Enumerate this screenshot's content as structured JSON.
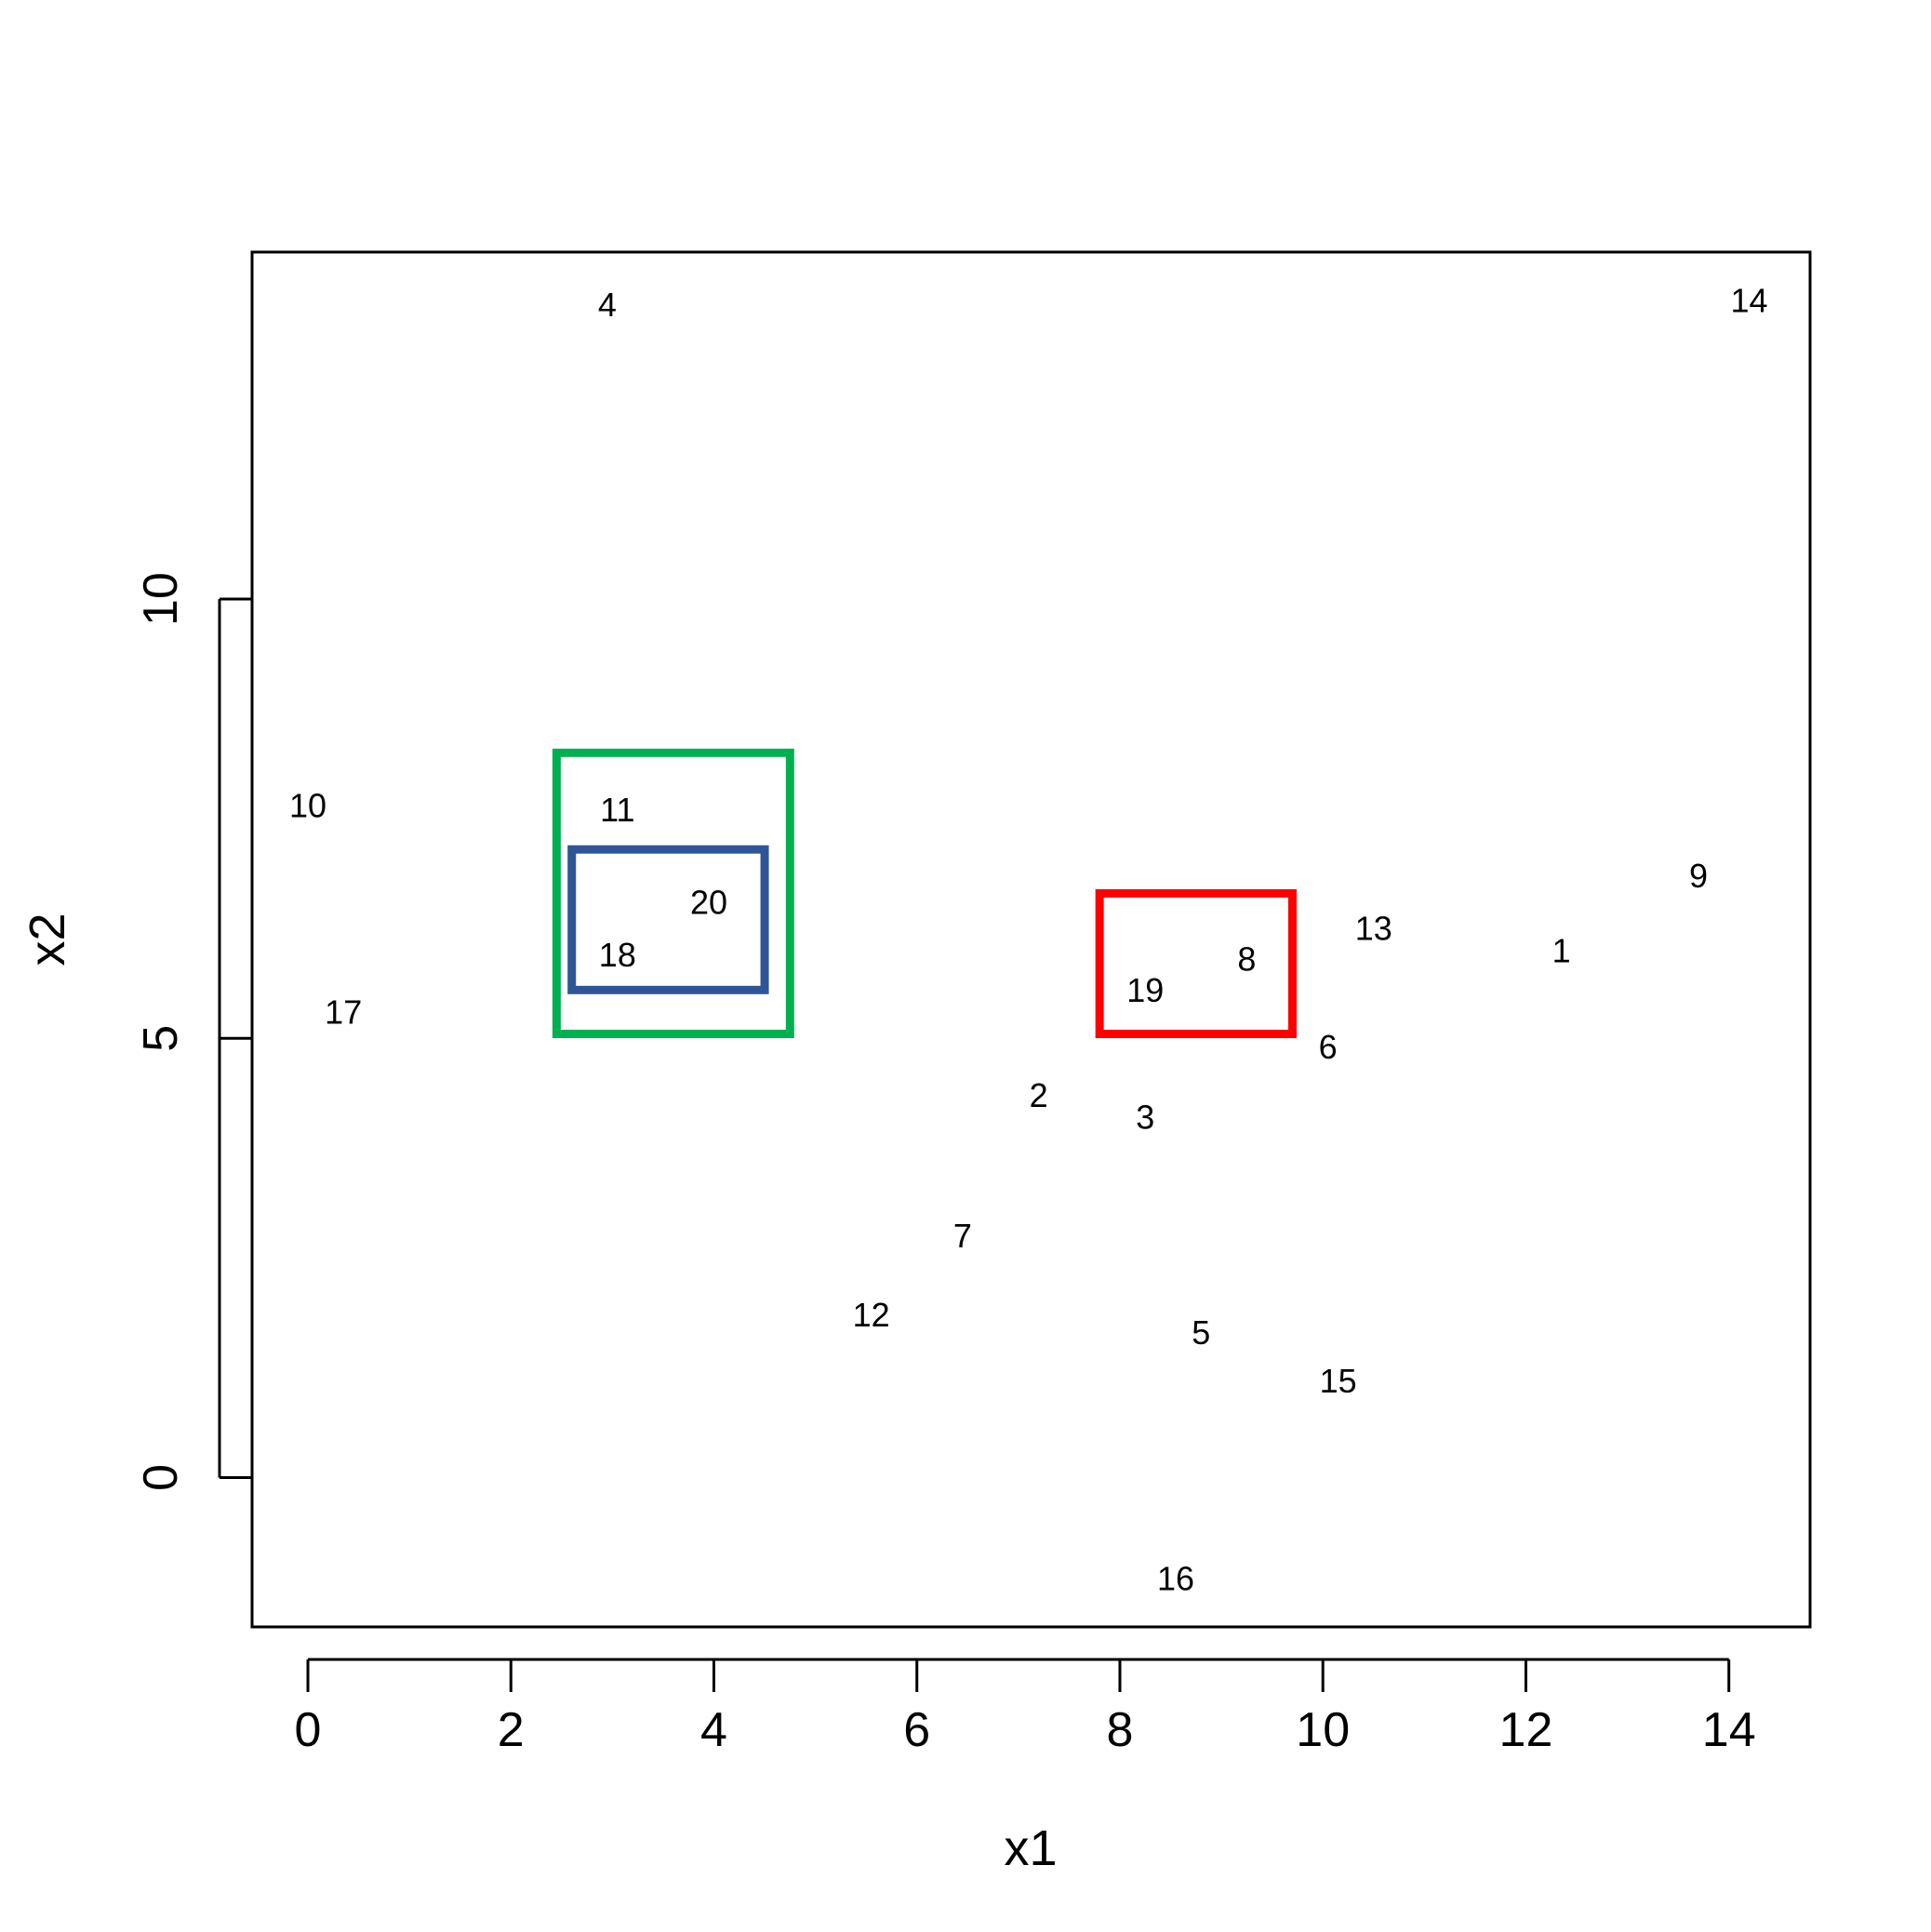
{
  "chart_data": {
    "type": "scatter",
    "title": "",
    "xlabel": "x1",
    "ylabel": "x2",
    "xlim": [
      -0.55,
      14.8
    ],
    "ylim": [
      -1.7,
      13.95
    ],
    "x_ticks": [
      0,
      2,
      4,
      6,
      8,
      10,
      12,
      14
    ],
    "y_ticks": [
      0,
      5,
      10
    ],
    "x_tick_labels": [
      "0",
      "2",
      "4",
      "6",
      "8",
      "10",
      "12",
      "14"
    ],
    "y_tick_labels": [
      "0",
      "5",
      "10"
    ],
    "grid": false,
    "legend": "none",
    "points": [
      {
        "label": "1",
        "x": 12.35,
        "y": 6.0
      },
      {
        "label": "2",
        "x": 7.2,
        "y": 4.35
      },
      {
        "label": "3",
        "x": 8.25,
        "y": 4.1
      },
      {
        "label": "4",
        "x": 2.95,
        "y": 13.35
      },
      {
        "label": "5",
        "x": 8.8,
        "y": 1.65
      },
      {
        "label": "6",
        "x": 10.05,
        "y": 4.9
      },
      {
        "label": "7",
        "x": 6.45,
        "y": 2.75
      },
      {
        "label": "8",
        "x": 9.25,
        "y": 5.9
      },
      {
        "label": "9",
        "x": 13.7,
        "y": 6.85
      },
      {
        "label": "10",
        "x": 0.0,
        "y": 7.65
      },
      {
        "label": "11",
        "x": 3.05,
        "y": 7.6
      },
      {
        "label": "12",
        "x": 5.55,
        "y": 1.85
      },
      {
        "label": "13",
        "x": 10.5,
        "y": 6.25
      },
      {
        "label": "14",
        "x": 14.2,
        "y": 13.4
      },
      {
        "label": "15",
        "x": 10.15,
        "y": 1.1
      },
      {
        "label": "16",
        "x": 8.55,
        "y": -1.15
      },
      {
        "label": "17",
        "x": 0.35,
        "y": 5.3
      },
      {
        "label": "18",
        "x": 3.05,
        "y": 5.95
      },
      {
        "label": "19",
        "x": 8.25,
        "y": 5.55
      },
      {
        "label": "20",
        "x": 3.95,
        "y": 6.55
      }
    ],
    "highlight_boxes": [
      {
        "name": "green-box",
        "color": "#00b050",
        "x_range": [
          2.45,
          4.75
        ],
        "y_range": [
          5.05,
          8.25
        ]
      },
      {
        "name": "blue-box",
        "color": "#2f5597",
        "x_range": [
          2.6,
          4.5
        ],
        "y_range": [
          5.55,
          7.15
        ]
      },
      {
        "name": "red-box",
        "color": "#ff0000",
        "x_range": [
          7.8,
          9.7
        ],
        "y_range": [
          5.05,
          6.65
        ]
      }
    ]
  }
}
